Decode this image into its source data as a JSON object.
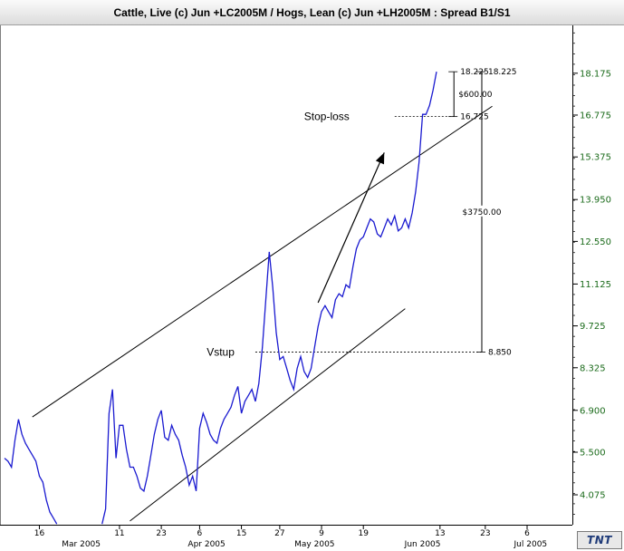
{
  "window": {
    "title": "Cattle, Live (c) Jun +LC2005M / Hogs, Lean (c) Jun +LH2005M : Spread B1/S1"
  },
  "colors": {
    "series": "#1a1ad0",
    "y_tick": "#1b6b1b",
    "lines": "#000000"
  },
  "logo": {
    "text": "TNT"
  },
  "chart_data": {
    "type": "line",
    "title": "Cattle, Live (c) Jun +LC2005M / Hogs, Lean (c) Jun +LH2005M : Spread B1/S1",
    "xlim": [
      0,
      163
    ],
    "ylim": [
      3.075,
      19.775
    ],
    "x_ticks": [
      {
        "x": 10,
        "label": "16"
      },
      {
        "x": 33,
        "label": "11"
      },
      {
        "x": 45,
        "label": "23"
      },
      {
        "x": 56,
        "label": "6"
      },
      {
        "x": 68,
        "label": "15"
      },
      {
        "x": 79,
        "label": "27"
      },
      {
        "x": 91,
        "label": "9"
      },
      {
        "x": 103,
        "label": "19"
      },
      {
        "x": 125,
        "label": "13"
      },
      {
        "x": 138,
        "label": "23"
      },
      {
        "x": 150,
        "label": "6"
      }
    ],
    "x_months": [
      {
        "x": 22,
        "label": "Mar 2005"
      },
      {
        "x": 58,
        "label": "Apr 2005"
      },
      {
        "x": 89,
        "label": "May 2005"
      },
      {
        "x": 120,
        "label": "Jun 2005"
      },
      {
        "x": 151,
        "label": "Jul 2005"
      }
    ],
    "y_ticks": [
      18.175,
      16.775,
      15.375,
      13.95,
      12.55,
      11.125,
      9.725,
      8.325,
      6.9,
      5.5,
      4.075
    ],
    "y_tick_labels": [
      "18.175",
      "16.775",
      "15.375",
      "13.950",
      "12.550",
      "11.125",
      "9.725",
      "8.325",
      "6.900",
      "5.500",
      "4.075"
    ],
    "series": [
      {
        "points": [
          [
            0,
            5.3
          ],
          [
            1,
            5.2
          ],
          [
            2,
            5.0
          ],
          [
            3,
            5.9
          ],
          [
            4,
            6.6
          ],
          [
            5,
            6.1
          ],
          [
            6,
            5.8
          ],
          [
            7,
            5.6
          ],
          [
            8,
            5.4
          ],
          [
            9,
            5.2
          ],
          [
            10,
            4.7
          ],
          [
            11,
            4.5
          ],
          [
            12,
            3.9
          ],
          [
            13,
            3.5
          ],
          [
            14,
            3.3
          ],
          [
            15,
            3.1
          ],
          [
            28,
            3.1
          ],
          [
            29,
            3.6
          ],
          [
            30,
            6.8
          ],
          [
            31,
            7.6
          ],
          [
            32,
            5.3
          ],
          [
            33,
            6.4
          ],
          [
            34,
            6.4
          ],
          [
            35,
            5.6
          ],
          [
            36,
            5.0
          ],
          [
            37,
            5.0
          ],
          [
            38,
            4.7
          ],
          [
            39,
            4.3
          ],
          [
            40,
            4.2
          ],
          [
            41,
            4.7
          ],
          [
            42,
            5.4
          ],
          [
            43,
            6.1
          ],
          [
            44,
            6.6
          ],
          [
            45,
            6.9
          ],
          [
            46,
            6.0
          ],
          [
            47,
            5.9
          ],
          [
            48,
            6.4
          ],
          [
            49,
            6.1
          ],
          [
            50,
            5.9
          ],
          [
            51,
            5.4
          ],
          [
            52,
            5.0
          ],
          [
            53,
            4.4
          ],
          [
            54,
            4.7
          ],
          [
            55,
            4.2
          ],
          [
            56,
            6.3
          ],
          [
            57,
            6.8
          ],
          [
            58,
            6.5
          ],
          [
            59,
            6.1
          ],
          [
            60,
            5.9
          ],
          [
            61,
            5.8
          ],
          [
            62,
            6.3
          ],
          [
            63,
            6.6
          ],
          [
            64,
            6.8
          ],
          [
            65,
            7.0
          ],
          [
            66,
            7.4
          ],
          [
            67,
            7.7
          ],
          [
            68,
            6.8
          ],
          [
            69,
            7.2
          ],
          [
            70,
            7.4
          ],
          [
            71,
            7.6
          ],
          [
            72,
            7.2
          ],
          [
            73,
            7.8
          ],
          [
            74,
            9.0
          ],
          [
            75,
            10.6
          ],
          [
            76,
            12.2
          ],
          [
            77,
            11.0
          ],
          [
            78,
            9.5
          ],
          [
            79,
            8.6
          ],
          [
            80,
            8.7
          ],
          [
            81,
            8.3
          ],
          [
            82,
            7.9
          ],
          [
            83,
            7.6
          ],
          [
            84,
            8.3
          ],
          [
            85,
            8.7
          ],
          [
            86,
            8.2
          ],
          [
            87,
            8.0
          ],
          [
            88,
            8.3
          ],
          [
            89,
            9.0
          ],
          [
            90,
            9.7
          ],
          [
            91,
            10.2
          ],
          [
            92,
            10.4
          ],
          [
            93,
            10.2
          ],
          [
            94,
            10.0
          ],
          [
            95,
            10.6
          ],
          [
            96,
            10.8
          ],
          [
            97,
            10.7
          ],
          [
            98,
            11.1
          ],
          [
            99,
            11.0
          ],
          [
            100,
            11.7
          ],
          [
            101,
            12.3
          ],
          [
            102,
            12.6
          ],
          [
            103,
            12.7
          ],
          [
            104,
            13.0
          ],
          [
            105,
            13.3
          ],
          [
            106,
            13.2
          ],
          [
            107,
            12.8
          ],
          [
            108,
            12.7
          ],
          [
            109,
            13.0
          ],
          [
            110,
            13.3
          ],
          [
            111,
            13.1
          ],
          [
            112,
            13.4
          ],
          [
            113,
            12.9
          ],
          [
            114,
            13.0
          ],
          [
            115,
            13.3
          ],
          [
            116,
            13.0
          ],
          [
            117,
            13.5
          ],
          [
            118,
            14.2
          ],
          [
            119,
            15.2
          ],
          [
            120,
            16.8
          ],
          [
            121,
            16.8
          ],
          [
            122,
            17.1
          ],
          [
            123,
            17.6
          ],
          [
            124,
            18.225
          ]
        ]
      }
    ],
    "trendlines": [
      {
        "from": [
          8,
          6.68
        ],
        "to": [
          140,
          17.07
        ]
      },
      {
        "from": [
          36,
          3.2
        ],
        "to": [
          115,
          10.3
        ]
      }
    ],
    "arrow": {
      "from": [
        90,
        10.5
      ],
      "to": [
        109,
        15.52
      ]
    },
    "annotations": [
      {
        "label": "Stop-loss",
        "x": 99,
        "y": 16.725
      },
      {
        "label": "Vstup",
        "x": 66,
        "y": 8.85
      }
    ],
    "stop_level": {
      "value": 16.725,
      "label": "16.725",
      "x_from": 112,
      "x_to": 129
    },
    "entry_level": {
      "value": 8.85,
      "label": "8.850",
      "x_from": 72,
      "x_to": 137
    },
    "top_level": {
      "label_inner": "18.225",
      "label_outer": "18.225",
      "value": 18.225
    },
    "brackets": [
      {
        "label": "$600.00",
        "from": 18.225,
        "to": 16.725
      },
      {
        "label": "$3750.00",
        "from": 18.225,
        "to": 8.85
      }
    ]
  }
}
